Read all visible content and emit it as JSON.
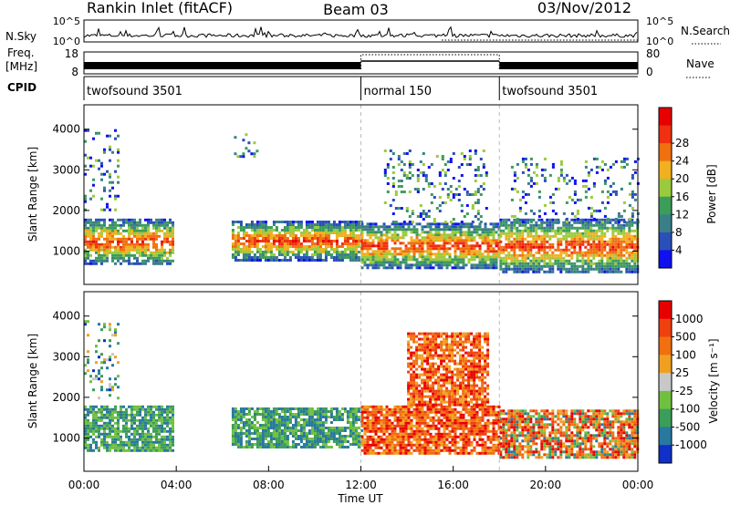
{
  "header": {
    "station": "Rankin Inlet (fitACF)",
    "beam": "Beam 03",
    "date": "03/Nov/2012"
  },
  "strip_labels": {
    "nsky": "N.Sky",
    "nsky_ticks": [
      "10^5",
      "10^0"
    ],
    "nsearch": "N.Search",
    "nsearch_ticks": [
      "10^5",
      "10^0"
    ],
    "freq_line1": "Freq.",
    "freq_line2": "[MHz]",
    "freq_ticks": [
      "18",
      "8"
    ],
    "nave": "Nave",
    "nave_ticks": [
      "80",
      "0"
    ],
    "cpid": "CPID"
  },
  "cpid_segments": [
    {
      "label": "twofsound 3501",
      "start_hour": 0,
      "end_hour": 12
    },
    {
      "label": "normal 150",
      "start_hour": 12,
      "end_hour": 18
    },
    {
      "label": "twofsound 3501",
      "start_hour": 18,
      "end_hour": 24
    }
  ],
  "chart_data": [
    {
      "type": "heatmap",
      "panel": "power",
      "ylabel": "Slant Range [km]",
      "yticks": [
        "1000",
        "2000",
        "3000",
        "4000"
      ],
      "ylim": [
        180,
        4600
      ],
      "xlim_hours": [
        0,
        24
      ],
      "colorbar": {
        "label": "Power [dB]",
        "ticks": [
          "4",
          "8",
          "12",
          "16",
          "20",
          "24",
          "28"
        ],
        "colors": [
          "#1010f0",
          "#2850b8",
          "#3a7f88",
          "#3c9c5a",
          "#9acb3c",
          "#f0b020",
          "#f07010",
          "#f03010",
          "#e80000"
        ]
      },
      "bands": [
        {
          "start_hour": 0.0,
          "end_hour": 3.9,
          "range_low_km": 700,
          "range_high_km": 1800,
          "level": "high"
        },
        {
          "start_hour": 6.4,
          "end_hour": 12.0,
          "range_low_km": 800,
          "range_high_km": 1750,
          "level": "high"
        },
        {
          "start_hour": 12.0,
          "end_hour": 18.0,
          "range_low_km": 600,
          "range_high_km": 1700,
          "level": "high"
        },
        {
          "start_hour": 18.0,
          "end_hour": 24.0,
          "range_low_km": 500,
          "range_high_km": 1800,
          "level": "high"
        },
        {
          "start_hour": 0.0,
          "end_hour": 1.5,
          "range_low_km": 2000,
          "range_high_km": 4000,
          "level": "low"
        },
        {
          "start_hour": 6.5,
          "end_hour": 7.5,
          "range_low_km": 3300,
          "range_high_km": 3900,
          "level": "low"
        },
        {
          "start_hour": 13.0,
          "end_hour": 17.5,
          "range_low_km": 1700,
          "range_high_km": 3500,
          "level": "low"
        },
        {
          "start_hour": 18.5,
          "end_hour": 24.0,
          "range_low_km": 1700,
          "range_high_km": 3300,
          "level": "low"
        }
      ]
    },
    {
      "type": "heatmap",
      "panel": "velocity",
      "ylabel": "Slant Range [km]",
      "yticks": [
        "1000",
        "2000",
        "3000",
        "4000"
      ],
      "ylim": [
        180,
        4600
      ],
      "xlim_hours": [
        0,
        24
      ],
      "xticks": [
        "00:00",
        "04:00",
        "08:00",
        "12:00",
        "16:00",
        "20:00",
        "00:00"
      ],
      "xlabel": "Time UT",
      "colorbar": {
        "label": "Velocity [m s⁻¹]",
        "ticks": [
          "1000",
          "500",
          "100",
          "25",
          "-25",
          "-100",
          "-500",
          "-1000"
        ],
        "colors": [
          "#1030c8",
          "#2878a0",
          "#3c9c5a",
          "#70c040",
          "#c8c8c8",
          "#f0a020",
          "#f07010",
          "#f04010",
          "#e80000"
        ]
      },
      "bands": [
        {
          "start_hour": 0.0,
          "end_hour": 3.9,
          "range_low_km": 700,
          "range_high_km": 1800,
          "level": "toward"
        },
        {
          "start_hour": 6.4,
          "end_hour": 12.0,
          "range_low_km": 800,
          "range_high_km": 1750,
          "level": "toward"
        },
        {
          "start_hour": 12.0,
          "end_hour": 18.0,
          "range_low_km": 600,
          "range_high_km": 1800,
          "level": "away"
        },
        {
          "start_hour": 18.0,
          "end_hour": 24.0,
          "range_low_km": 500,
          "range_high_km": 1700,
          "level": "mixed"
        },
        {
          "start_hour": 14.0,
          "end_hour": 17.5,
          "range_low_km": 1800,
          "range_high_km": 3600,
          "level": "away"
        },
        {
          "start_hour": 0.0,
          "end_hour": 1.5,
          "range_low_km": 2000,
          "range_high_km": 3900,
          "level": "low"
        }
      ]
    }
  ]
}
